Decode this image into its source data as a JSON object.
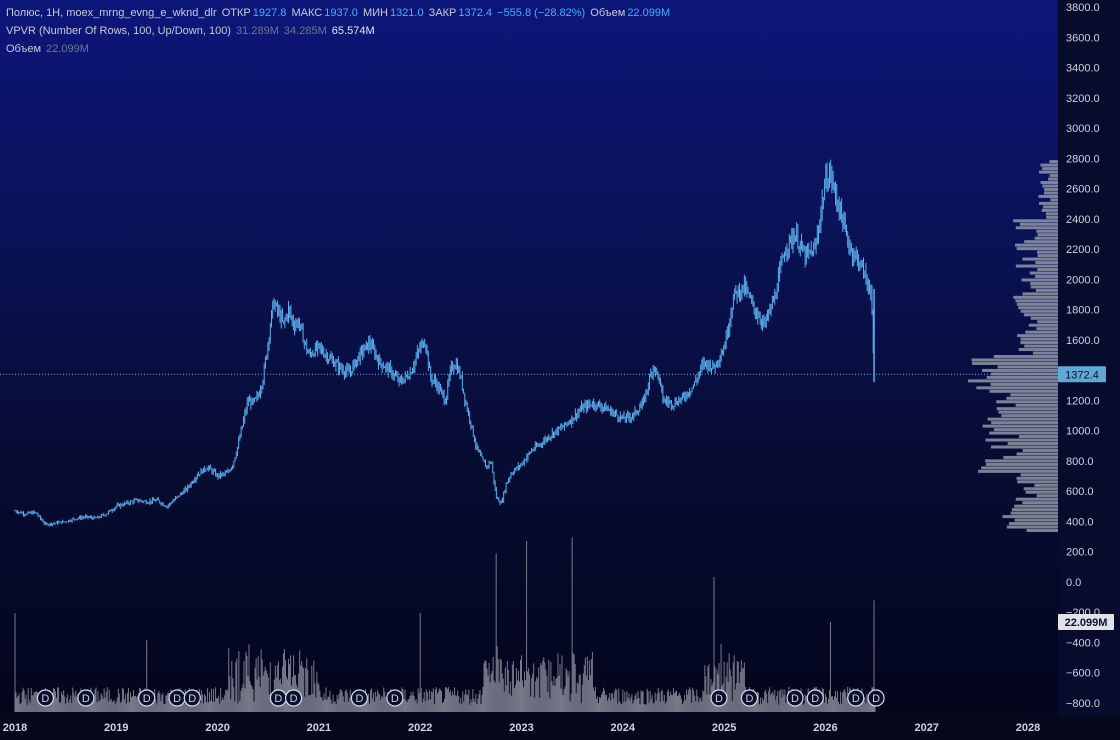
{
  "legend": {
    "symbol_line": "Полюс, 1Н, moex_mrng_evng_e_wknd_dlr",
    "open_label": "ОТКР",
    "open_value": "1927.8",
    "high_label": "МАКС",
    "high_value": "1937.0",
    "low_label": "МИН",
    "low_value": "1321.0",
    "close_label": "ЗАКР",
    "close_value": "1372.4",
    "change_value": "−555.8 (−28.82%)",
    "volume_label": "Объем",
    "volume_value": "22.099M",
    "vpvr_name": "VPVR (Number Of Rows, 100, Up/Down, 100)",
    "vpvr_up": "31.289M",
    "vpvr_down": "34.285M",
    "vpvr_total": "65.574M",
    "volume_line_label": "Объем",
    "volume_line_value": "22.099M"
  },
  "colors": {
    "price": "#5ab0ee",
    "volume": "#8a8f9c",
    "profile": "#9aa0ae",
    "last_price_tag": "#5fa9d4",
    "volume_tag": "#e0e2e8"
  },
  "chart_data": {
    "type": "ohlc",
    "ylim": [
      -800,
      3800
    ],
    "y_ticks": [
      "3800.0",
      "3600.0",
      "3400.0",
      "3200.0",
      "3000.0",
      "2800.0",
      "2600.0",
      "2400.0",
      "2200.0",
      "2000.0",
      "1800.0",
      "1600.0",
      "1400.0",
      "1200.0",
      "1000.0",
      "800.0",
      "600.0",
      "400.0",
      "200.0",
      "0.0",
      "−200.0",
      "−400.0",
      "−600.0",
      "−800.0"
    ],
    "x_ticks": [
      "2018",
      "2019",
      "2020",
      "2021",
      "2022",
      "2023",
      "2024",
      "2025",
      "2026",
      "2027",
      "2028"
    ],
    "price_path": [
      [
        2018.0,
        470
      ],
      [
        2018.1,
        450
      ],
      [
        2018.2,
        460
      ],
      [
        2018.3,
        380
      ],
      [
        2018.4,
        390
      ],
      [
        2018.5,
        400
      ],
      [
        2018.6,
        420
      ],
      [
        2018.7,
        430
      ],
      [
        2018.8,
        420
      ],
      [
        2018.9,
        450
      ],
      [
        2019.0,
        500
      ],
      [
        2019.1,
        520
      ],
      [
        2019.2,
        540
      ],
      [
        2019.3,
        530
      ],
      [
        2019.4,
        540
      ],
      [
        2019.5,
        500
      ],
      [
        2019.6,
        560
      ],
      [
        2019.7,
        620
      ],
      [
        2019.8,
        710
      ],
      [
        2019.9,
        760
      ],
      [
        2020.0,
        700
      ],
      [
        2020.1,
        720
      ],
      [
        2020.15,
        780
      ],
      [
        2020.2,
        900
      ],
      [
        2020.25,
        1050
      ],
      [
        2020.3,
        1200
      ],
      [
        2020.35,
        1180
      ],
      [
        2020.4,
        1230
      ],
      [
        2020.45,
        1350
      ],
      [
        2020.5,
        1600
      ],
      [
        2020.55,
        1850
      ],
      [
        2020.6,
        1780
      ],
      [
        2020.65,
        1700
      ],
      [
        2020.7,
        1800
      ],
      [
        2020.75,
        1700
      ],
      [
        2020.8,
        1720
      ],
      [
        2020.85,
        1600
      ],
      [
        2020.9,
        1500
      ],
      [
        2021.0,
        1550
      ],
      [
        2021.1,
        1480
      ],
      [
        2021.2,
        1420
      ],
      [
        2021.3,
        1380
      ],
      [
        2021.4,
        1500
      ],
      [
        2021.5,
        1580
      ],
      [
        2021.6,
        1450
      ],
      [
        2021.7,
        1400
      ],
      [
        2021.8,
        1320
      ],
      [
        2021.9,
        1380
      ],
      [
        2022.0,
        1550
      ],
      [
        2022.05,
        1600
      ],
      [
        2022.1,
        1350
      ],
      [
        2022.15,
        1320
      ],
      [
        2022.2,
        1260
      ],
      [
        2022.25,
        1200
      ],
      [
        2022.3,
        1400
      ],
      [
        2022.35,
        1450
      ],
      [
        2022.4,
        1350
      ],
      [
        2022.45,
        1180
      ],
      [
        2022.5,
        1050
      ],
      [
        2022.55,
        900
      ],
      [
        2022.6,
        820
      ],
      [
        2022.65,
        760
      ],
      [
        2022.7,
        800
      ],
      [
        2022.75,
        560
      ],
      [
        2022.8,
        520
      ],
      [
        2022.85,
        650
      ],
      [
        2022.9,
        720
      ],
      [
        2023.0,
        780
      ],
      [
        2023.1,
        870
      ],
      [
        2023.2,
        920
      ],
      [
        2023.3,
        980
      ],
      [
        2023.4,
        1020
      ],
      [
        2023.5,
        1080
      ],
      [
        2023.6,
        1150
      ],
      [
        2023.7,
        1180
      ],
      [
        2023.8,
        1160
      ],
      [
        2023.9,
        1120
      ],
      [
        2024.0,
        1080
      ],
      [
        2024.1,
        1100
      ],
      [
        2024.2,
        1180
      ],
      [
        2024.3,
        1430
      ],
      [
        2024.35,
        1360
      ],
      [
        2024.4,
        1200
      ],
      [
        2024.5,
        1180
      ],
      [
        2024.6,
        1220
      ],
      [
        2024.7,
        1300
      ],
      [
        2024.8,
        1450
      ],
      [
        2024.9,
        1420
      ],
      [
        2025.0,
        1550
      ],
      [
        2025.1,
        1900
      ],
      [
        2025.2,
        1950
      ],
      [
        2025.3,
        1800
      ],
      [
        2025.4,
        1700
      ],
      [
        2025.5,
        1880
      ],
      [
        2025.6,
        2200
      ],
      [
        2025.7,
        2300
      ],
      [
        2025.8,
        2150
      ],
      [
        2025.9,
        2200
      ],
      [
        2026.0,
        2650
      ],
      [
        2026.05,
        2700
      ],
      [
        2026.1,
        2550
      ],
      [
        2026.15,
        2450
      ],
      [
        2026.2,
        2300
      ],
      [
        2026.25,
        2200
      ],
      [
        2026.3,
        2150
      ],
      [
        2026.35,
        2100
      ],
      [
        2026.4,
        2000
      ],
      [
        2026.45,
        1930
      ],
      [
        2026.48,
        1372
      ]
    ],
    "last_price": 1372.4,
    "volume_last": "22.099M",
    "dividend_marker_label": "D",
    "dividend_dates": [
      2018.3,
      2018.7,
      2019.3,
      2019.6,
      2019.75,
      2020.6,
      2020.75,
      2021.4,
      2021.75,
      2024.95,
      2025.25,
      2025.7,
      2025.9,
      2026.3,
      2026.5
    ],
    "spike_volumes": [
      [
        2018.0,
        0.55
      ],
      [
        2019.3,
        0.4
      ],
      [
        2022.0,
        0.55
      ],
      [
        2022.75,
        0.88
      ],
      [
        2023.05,
        0.95
      ],
      [
        2023.5,
        0.97
      ],
      [
        2024.9,
        0.75
      ],
      [
        2026.05,
        0.5
      ],
      [
        2026.48,
        0.62
      ]
    ]
  }
}
